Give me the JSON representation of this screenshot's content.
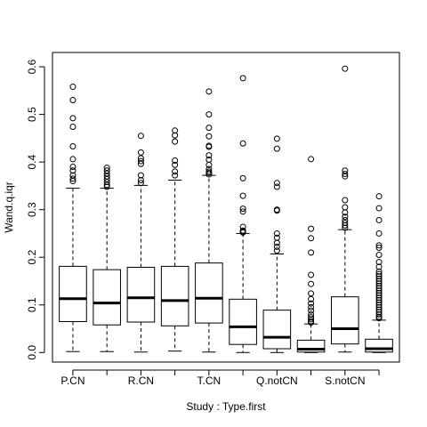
{
  "chart_data": {
    "type": "boxplot",
    "xlabel": "Study : Type.first",
    "ylabel": "Wand.q.iqr",
    "ylim": [
      -0.02,
      0.63
    ],
    "yticks": [
      0.0,
      0.1,
      0.2,
      0.3,
      0.4,
      0.5,
      0.6
    ],
    "ytick_labels": [
      "0.0",
      "0.1",
      "0.2",
      "0.3",
      "0.4",
      "0.5",
      "0.6"
    ],
    "x_tick_labels": [
      "P.CN",
      "R.CN",
      "T.CN",
      "Q.notCN",
      "S.notCN"
    ],
    "x_tick_label_positions": [
      1,
      3,
      5,
      7,
      9
    ],
    "colors": {
      "box_stroke": "#000000",
      "background": "#ffffff"
    },
    "boxes": [
      {
        "whisker_low": 0.002,
        "q1": 0.065,
        "median": 0.113,
        "q3": 0.181,
        "whisker_high": 0.345,
        "outliers": [
          0.558,
          0.53,
          0.492,
          0.474,
          0.433,
          0.406,
          0.39,
          0.382,
          0.372,
          0.365,
          0.36
        ]
      },
      {
        "whisker_low": 0.002,
        "q1": 0.058,
        "median": 0.104,
        "q3": 0.174,
        "whisker_high": 0.345,
        "outliers": [
          0.388,
          0.382,
          0.376,
          0.37,
          0.364,
          0.358,
          0.352,
          0.348
        ]
      },
      {
        "whisker_low": 0.001,
        "q1": 0.064,
        "median": 0.115,
        "q3": 0.179,
        "whisker_high": 0.351,
        "outliers": [
          0.455,
          0.42,
          0.408,
          0.402,
          0.396,
          0.372,
          0.362,
          0.356
        ]
      },
      {
        "whisker_low": 0.003,
        "q1": 0.056,
        "median": 0.109,
        "q3": 0.181,
        "whisker_high": 0.362,
        "outliers": [
          0.466,
          0.456,
          0.443,
          0.403,
          0.394,
          0.38,
          0.372
        ]
      },
      {
        "whisker_low": 0.001,
        "q1": 0.062,
        "median": 0.114,
        "q3": 0.188,
        "whisker_high": 0.372,
        "outliers": [
          0.548,
          0.5,
          0.472,
          0.454,
          0.434,
          0.432,
          0.414,
          0.405,
          0.394,
          0.385,
          0.38,
          0.377,
          0.374
        ]
      },
      {
        "whisker_low": 0.0,
        "q1": 0.017,
        "median": 0.054,
        "q3": 0.112,
        "whisker_high": 0.25,
        "outliers": [
          0.576,
          0.439,
          0.366,
          0.329,
          0.302,
          0.296,
          0.264,
          0.256,
          0.254,
          0.252
        ]
      },
      {
        "whisker_low": 0.0,
        "q1": 0.008,
        "median": 0.032,
        "q3": 0.089,
        "whisker_high": 0.207,
        "outliers": [
          0.449,
          0.428,
          0.356,
          0.348,
          0.3,
          0.298,
          0.25,
          0.241,
          0.23,
          0.222,
          0.214
        ]
      },
      {
        "whisker_low": 0.0,
        "q1": 0.001,
        "median": 0.007,
        "q3": 0.026,
        "whisker_high": 0.06,
        "outliers": [
          0.406,
          0.26,
          0.24,
          0.21,
          0.163,
          0.144,
          0.124,
          0.112,
          0.103,
          0.095,
          0.088,
          0.08,
          0.074,
          0.07,
          0.066,
          0.063
        ]
      },
      {
        "whisker_low": 0.001,
        "q1": 0.018,
        "median": 0.05,
        "q3": 0.117,
        "whisker_high": 0.258,
        "outliers": [
          0.596,
          0.382,
          0.375,
          0.37,
          0.32,
          0.305,
          0.294,
          0.285,
          0.278,
          0.272,
          0.267,
          0.262
        ]
      },
      {
        "whisker_low": 0.0,
        "q1": 0.001,
        "median": 0.008,
        "q3": 0.028,
        "whisker_high": 0.068,
        "outliers": [
          0.328,
          0.303,
          0.278,
          0.25,
          0.225,
          0.22,
          0.205,
          0.19,
          0.18,
          0.17,
          0.165,
          0.16,
          0.155,
          0.15,
          0.145,
          0.14,
          0.135,
          0.13,
          0.125,
          0.12,
          0.115,
          0.11,
          0.105,
          0.1,
          0.095,
          0.09,
          0.085,
          0.08,
          0.075,
          0.072
        ]
      }
    ]
  }
}
